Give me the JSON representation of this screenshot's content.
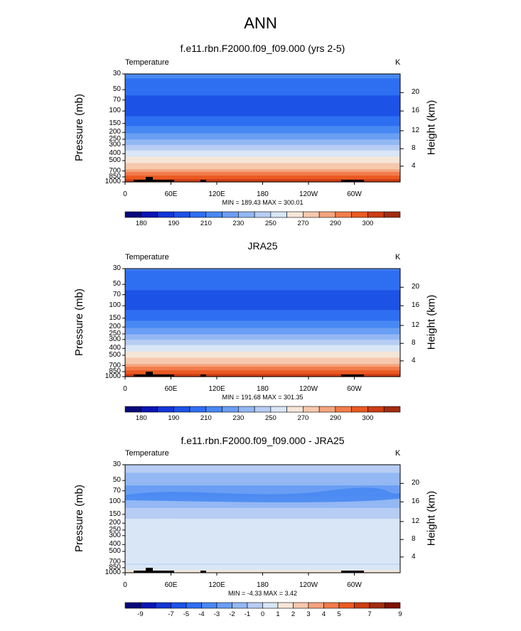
{
  "title": "ANN",
  "colors": {
    "temp_levels": [
      {
        "v": 175,
        "c": "#08087a"
      },
      {
        "v": 180,
        "c": "#0b15b4"
      },
      {
        "v": 185,
        "c": "#1436d6"
      },
      {
        "v": 190,
        "c": "#1c52e6"
      },
      {
        "v": 200,
        "c": "#2f6ff2"
      },
      {
        "v": 210,
        "c": "#4888f2"
      },
      {
        "v": 220,
        "c": "#6b9ef4"
      },
      {
        "v": 230,
        "c": "#93b8f4"
      },
      {
        "v": 240,
        "c": "#b7cdf4"
      },
      {
        "v": 250,
        "c": "#d8e6f6"
      },
      {
        "v": 260,
        "c": "#f6e6d8"
      },
      {
        "v": 270,
        "c": "#f6c8ae"
      },
      {
        "v": 280,
        "c": "#f5a47e"
      },
      {
        "v": 285,
        "c": "#f27c4c"
      },
      {
        "v": 290,
        "c": "#ea5a22"
      },
      {
        "v": 295,
        "c": "#cc3d14"
      },
      {
        "v": 300,
        "c": "#a12d10"
      },
      {
        "v": 305,
        "c": "#7f1206"
      }
    ],
    "diff_levels": [
      {
        "v": -10,
        "c": "#08087a"
      },
      {
        "v": -9,
        "c": "#0b15b4"
      },
      {
        "v": -8,
        "c": "#1436d6"
      },
      {
        "v": -7,
        "c": "#1c52e6"
      },
      {
        "v": -6,
        "c": "#2f6ff2"
      },
      {
        "v": -5,
        "c": "#4888f2"
      },
      {
        "v": -4,
        "c": "#6b9ef4"
      },
      {
        "v": -3,
        "c": "#93b8f4"
      },
      {
        "v": -2,
        "c": "#b7cdf4"
      },
      {
        "v": -1,
        "c": "#d8e6f6"
      },
      {
        "v": 0,
        "c": "#f6e6d8"
      },
      {
        "v": 1,
        "c": "#f6c8ae"
      },
      {
        "v": 2,
        "c": "#f5a47e"
      },
      {
        "v": 3,
        "c": "#f27c4c"
      },
      {
        "v": 4,
        "c": "#ea5a22"
      },
      {
        "v": 5,
        "c": "#cc3d14"
      },
      {
        "v": 6,
        "c": "#a12d10"
      },
      {
        "v": 7,
        "c": "#7f1206"
      },
      {
        "v": 9,
        "c": "#7f1206"
      }
    ],
    "terrain": "#000000"
  },
  "chart_data": [
    {
      "type": "heatmap",
      "title": "f.e11.rbn.F2000.f09_f09.000 (yrs 2-5)",
      "left_label": "Temperature",
      "units": "K",
      "ylabel": "Pressure (mb)",
      "y2label": "Height (km)",
      "yticks": [
        "30",
        "50",
        "70",
        "100",
        "150",
        "200",
        "250",
        "300",
        "400",
        "500",
        "700",
        "850",
        "1000"
      ],
      "y2ticks": [
        "20",
        "16",
        "12",
        "8",
        "4"
      ],
      "xticks": [
        "0",
        "60E",
        "120E",
        "180",
        "120W",
        "60W"
      ],
      "min_max": "MIN = 189.43   MAX = 300.01",
      "min": 189.43,
      "max": 300.01,
      "profile": [
        {
          "p": 1000,
          "v": 298
        },
        {
          "p": 850,
          "v": 292
        },
        {
          "p": 700,
          "v": 283
        },
        {
          "p": 500,
          "v": 266
        },
        {
          "p": 400,
          "v": 255
        },
        {
          "p": 300,
          "v": 240
        },
        {
          "p": 250,
          "v": 230
        },
        {
          "p": 200,
          "v": 219
        },
        {
          "p": 150,
          "v": 207
        },
        {
          "p": 100,
          "v": 195
        },
        {
          "p": 70,
          "v": 196
        },
        {
          "p": 50,
          "v": 205
        },
        {
          "p": 30,
          "v": 212
        }
      ],
      "colorbar_ticks": [
        "180",
        "190",
        "210",
        "230",
        "250",
        "270",
        "290",
        "300"
      ]
    },
    {
      "type": "heatmap",
      "title": "JRA25",
      "left_label": "Temperature",
      "units": "K",
      "ylabel": "Pressure (mb)",
      "y2label": "Height (km)",
      "yticks": [
        "30",
        "50",
        "70",
        "100",
        "150",
        "200",
        "250",
        "300",
        "400",
        "500",
        "700",
        "850",
        "1000"
      ],
      "y2ticks": [
        "20",
        "16",
        "12",
        "8",
        "4"
      ],
      "xticks": [
        "0",
        "60E",
        "120E",
        "180",
        "120W",
        "60W"
      ],
      "min_max": "MIN = 191.68   MAX = 301.35",
      "min": 191.68,
      "max": 301.35,
      "profile": [
        {
          "p": 1000,
          "v": 299
        },
        {
          "p": 850,
          "v": 292
        },
        {
          "p": 700,
          "v": 283
        },
        {
          "p": 500,
          "v": 266
        },
        {
          "p": 400,
          "v": 255
        },
        {
          "p": 300,
          "v": 240
        },
        {
          "p": 250,
          "v": 230
        },
        {
          "p": 200,
          "v": 219
        },
        {
          "p": 150,
          "v": 207
        },
        {
          "p": 100,
          "v": 196
        },
        {
          "p": 70,
          "v": 197
        },
        {
          "p": 50,
          "v": 204
        },
        {
          "p": 30,
          "v": 211
        }
      ],
      "colorbar_ticks": [
        "180",
        "190",
        "210",
        "230",
        "250",
        "270",
        "290",
        "300"
      ]
    },
    {
      "type": "heatmap",
      "title": "f.e11.rbn.F2000.f09_f09.000 - JRA25",
      "left_label": "Temperature",
      "units": "K",
      "ylabel": "Pressure (mb)",
      "y2label": "Height (km)",
      "yticks": [
        "30",
        "50",
        "70",
        "100",
        "150",
        "200",
        "250",
        "300",
        "400",
        "500",
        "700",
        "850",
        "1000"
      ],
      "y2ticks": [
        "20",
        "16",
        "12",
        "8",
        "4"
      ],
      "xticks": [
        "0",
        "60E",
        "120E",
        "180",
        "120W",
        "60W"
      ],
      "min_max": "MIN =  -4.33   MAX =   3.42",
      "min": -4.33,
      "max": 3.42,
      "profile": [
        {
          "p": 1000,
          "v": -0.5
        },
        {
          "p": 850,
          "v": -0.5
        },
        {
          "p": 700,
          "v": -1.5
        },
        {
          "p": 500,
          "v": -1.5
        },
        {
          "p": 300,
          "v": -0.5
        },
        {
          "p": 200,
          "v": -0.5
        },
        {
          "p": 150,
          "v": -1.5
        },
        {
          "p": 100,
          "v": -2.5
        },
        {
          "p": 70,
          "v": -3.5
        },
        {
          "p": 50,
          "v": -2.5
        },
        {
          "p": 30,
          "v": -1.5
        }
      ],
      "colorbar_ticks": [
        "-9",
        "-7",
        "-5",
        "-4",
        "-3",
        "-2",
        "-1",
        "0",
        "1",
        "2",
        "3",
        "4",
        "5",
        "7",
        "9"
      ]
    }
  ]
}
